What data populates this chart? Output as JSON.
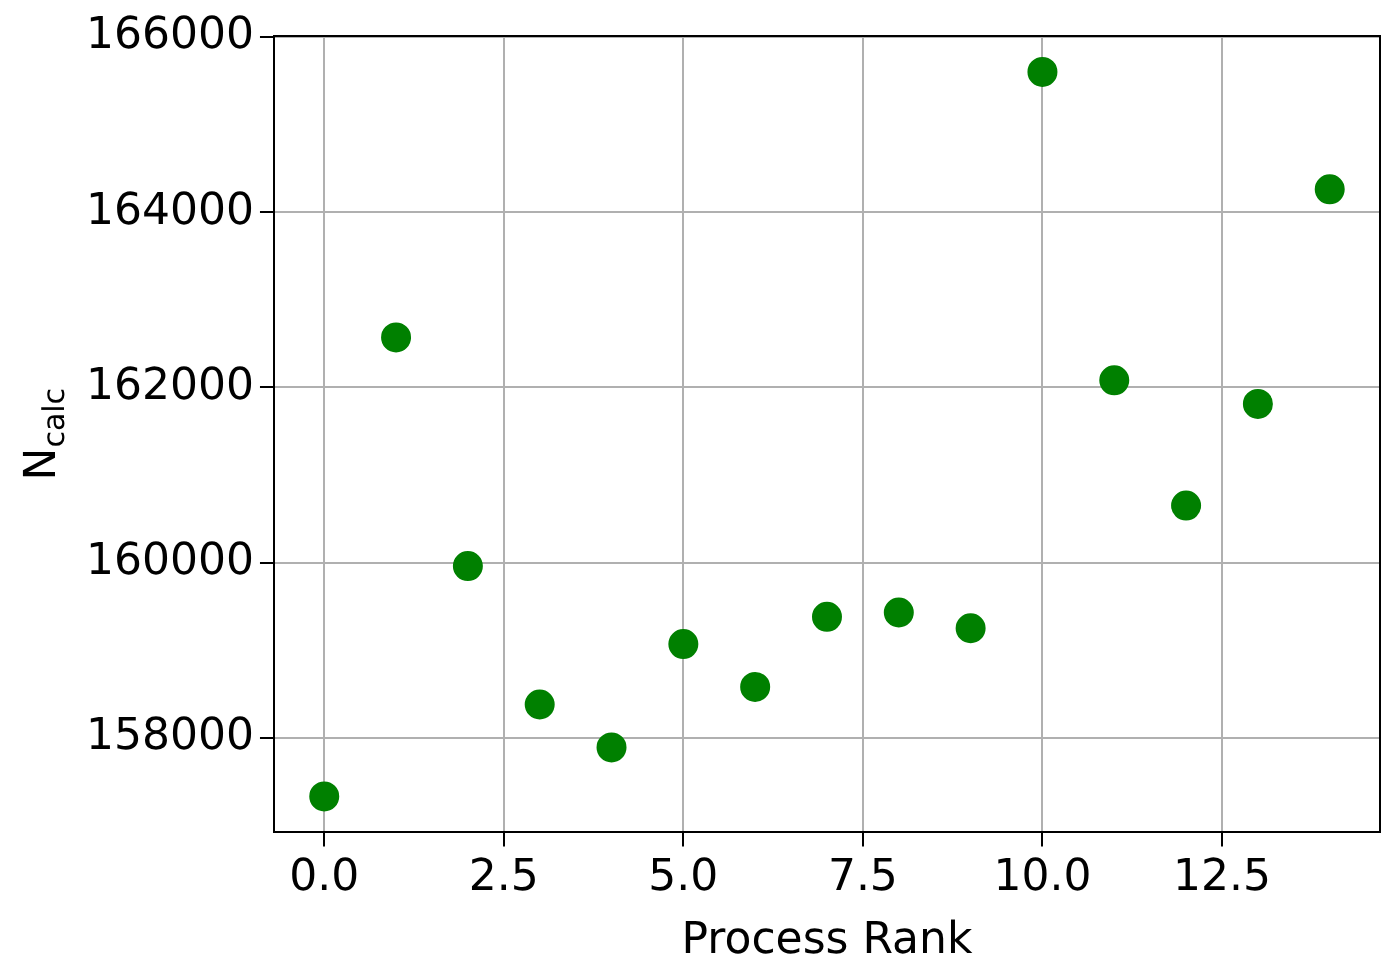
{
  "chart_data": {
    "type": "scatter",
    "xlabel": "Process Rank",
    "ylabel": "N$_{calc}$",
    "x": [
      0,
      1,
      2,
      3,
      4,
      5,
      6,
      7,
      8,
      9,
      10,
      11,
      12,
      13,
      14
    ],
    "series": [
      {
        "color": "#008000",
        "values": [
          157330,
          162570,
          159960,
          158380,
          157890,
          159070,
          158580,
          159380,
          159430,
          159250,
          165600,
          162080,
          160650,
          161810,
          164260
        ]
      }
    ],
    "xlim": [
      -0.7,
      14.7
    ],
    "xticks": [
      {
        "value": 0,
        "label": "0.0"
      },
      {
        "value": 2.5,
        "label": "2.5"
      },
      {
        "value": 5,
        "label": "5.0"
      },
      {
        "value": 7.5,
        "label": "7.5"
      },
      {
        "value": 10,
        "label": "10.0"
      },
      {
        "value": 12.5,
        "label": "12.5"
      }
    ],
    "ylim": [
      156920,
      166010
    ],
    "yticks": [
      158000,
      160000,
      162000,
      164000,
      166000
    ],
    "grid": true,
    "marker": "circle"
  }
}
